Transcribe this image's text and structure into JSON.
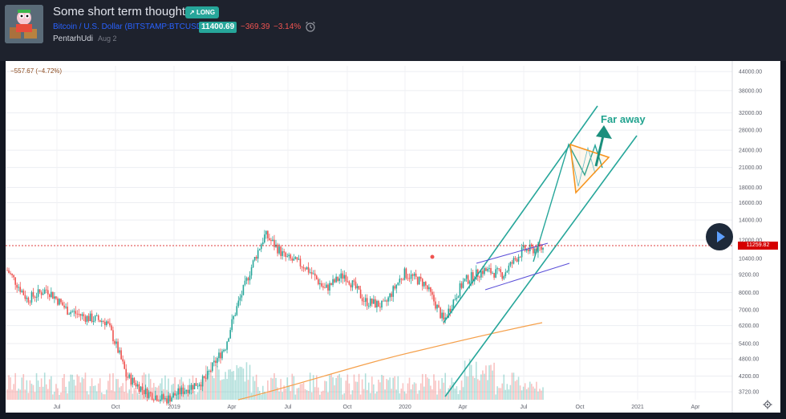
{
  "idea": {
    "title": "Some short term thoughts",
    "badge": "LONG",
    "symbol_name": "Bitcoin / U.S. Dollar",
    "symbol_code": "BITSTAMP:BTCUSD",
    "price": "11400.69",
    "change": "−369.39",
    "change_pct": "−3.14%",
    "author": "PentarhUdi",
    "date": "Aug 2"
  },
  "chart": {
    "delta_text": "−557.67 (−4.72%)",
    "current_price": "11259.82",
    "annotation": "Far away",
    "y_ticks": [
      "44000.00",
      "38000.00",
      "32000.00",
      "28000.00",
      "24000.00",
      "21000.00",
      "18000.00",
      "16000.00",
      "14000.00",
      "12000.00",
      "10400.00",
      "9200.00",
      "8000.00",
      "7000.00",
      "6200.00",
      "5400.00",
      "4800.00",
      "4200.00",
      "3720.00"
    ],
    "x_ticks": [
      "Jul",
      "Oct",
      "2019",
      "Apr",
      "Jul",
      "Oct",
      "2020",
      "Apr",
      "Jul",
      "Oct",
      "2021",
      "Apr",
      "Jul"
    ]
  },
  "colors": {
    "bg": "#131722",
    "header": "#1e222d",
    "teal": "#26a69a",
    "red": "#ef5350",
    "blue": "#2962ff",
    "ma_orange": "#f5a04b",
    "channel_purple": "#5b4fd8",
    "triangle_orange": "#f7941d"
  },
  "chart_data": {
    "type": "candlestick",
    "symbol": "BITSTAMP:BTCUSD",
    "scale": "log",
    "ylim": [
      3500,
      46000
    ],
    "x": [
      "2018-05",
      "2018-06",
      "2018-07",
      "2018-08",
      "2018-09",
      "2018-10",
      "2018-11",
      "2018-12",
      "2019-01",
      "2019-02",
      "2019-03",
      "2019-04",
      "2019-05",
      "2019-06",
      "2019-07",
      "2019-08",
      "2019-09",
      "2019-10",
      "2019-11",
      "2019-12",
      "2020-01",
      "2020-02",
      "2020-03",
      "2020-04",
      "2020-05",
      "2020-06",
      "2020-07",
      "2020-08"
    ],
    "close": [
      9500,
      7600,
      8200,
      7000,
      6600,
      6400,
      4200,
      3700,
      3500,
      3800,
      4100,
      5300,
      8500,
      12500,
      10500,
      9800,
      8200,
      9200,
      7500,
      7200,
      9300,
      8600,
      6400,
      8700,
      9500,
      9200,
      11100,
      11260
    ],
    "current_price": 11259.82,
    "x_ticks": [
      "Jul",
      "Oct",
      "2019",
      "Apr",
      "Jul",
      "Oct",
      "2020",
      "Apr",
      "Jul",
      "Oct",
      "2021",
      "Apr",
      "Jul"
    ],
    "y_ticks": [
      44000,
      38000,
      32000,
      28000,
      24000,
      21000,
      18000,
      16000,
      14000,
      12000,
      10400,
      9200,
      8000,
      7000,
      6200,
      5400,
      4800,
      4200,
      3720
    ]
  }
}
